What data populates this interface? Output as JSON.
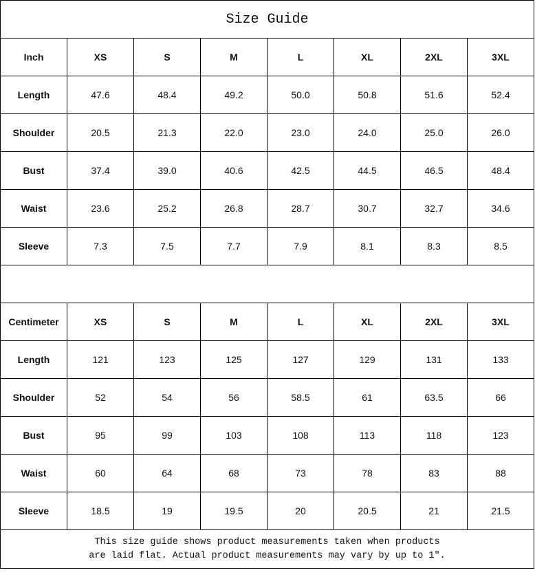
{
  "title": "Size Guide",
  "inch_table": {
    "unit_label": "Inch",
    "sizes": [
      "XS",
      "S",
      "M",
      "L",
      "XL",
      "2XL",
      "3XL"
    ],
    "rows": [
      {
        "label": "Length",
        "values": [
          "47.6",
          "48.4",
          "49.2",
          "50.0",
          "50.8",
          "51.6",
          "52.4"
        ]
      },
      {
        "label": "Shoulder",
        "values": [
          "20.5",
          "21.3",
          "22.0",
          "23.0",
          "24.0",
          "25.0",
          "26.0"
        ]
      },
      {
        "label": "Bust",
        "values": [
          "37.4",
          "39.0",
          "40.6",
          "42.5",
          "44.5",
          "46.5",
          "48.4"
        ]
      },
      {
        "label": "Waist",
        "values": [
          "23.6",
          "25.2",
          "26.8",
          "28.7",
          "30.7",
          "32.7",
          "34.6"
        ]
      },
      {
        "label": "Sleeve",
        "values": [
          "7.3",
          "7.5",
          "7.7",
          "7.9",
          "8.1",
          "8.3",
          "8.5"
        ]
      }
    ]
  },
  "cm_table": {
    "unit_label": "Centimeter",
    "sizes": [
      "XS",
      "S",
      "M",
      "L",
      "XL",
      "2XL",
      "3XL"
    ],
    "rows": [
      {
        "label": "Length",
        "values": [
          "121",
          "123",
          "125",
          "127",
          "129",
          "131",
          "133"
        ]
      },
      {
        "label": "Shoulder",
        "values": [
          "52",
          "54",
          "56",
          "58.5",
          "61",
          "63.5",
          "66"
        ]
      },
      {
        "label": "Bust",
        "values": [
          "95",
          "99",
          "103",
          "108",
          "113",
          "118",
          "123"
        ]
      },
      {
        "label": "Waist",
        "values": [
          "60",
          "64",
          "68",
          "73",
          "78",
          "83",
          "88"
        ]
      },
      {
        "label": "Sleeve",
        "values": [
          "18.5",
          "19",
          "19.5",
          "20",
          "20.5",
          "21",
          "21.5"
        ]
      }
    ]
  },
  "note": {
    "line1": "This size guide shows product measurements taken when products",
    "line2": "are laid flat. Actual product measurements may vary by up to 1″."
  }
}
